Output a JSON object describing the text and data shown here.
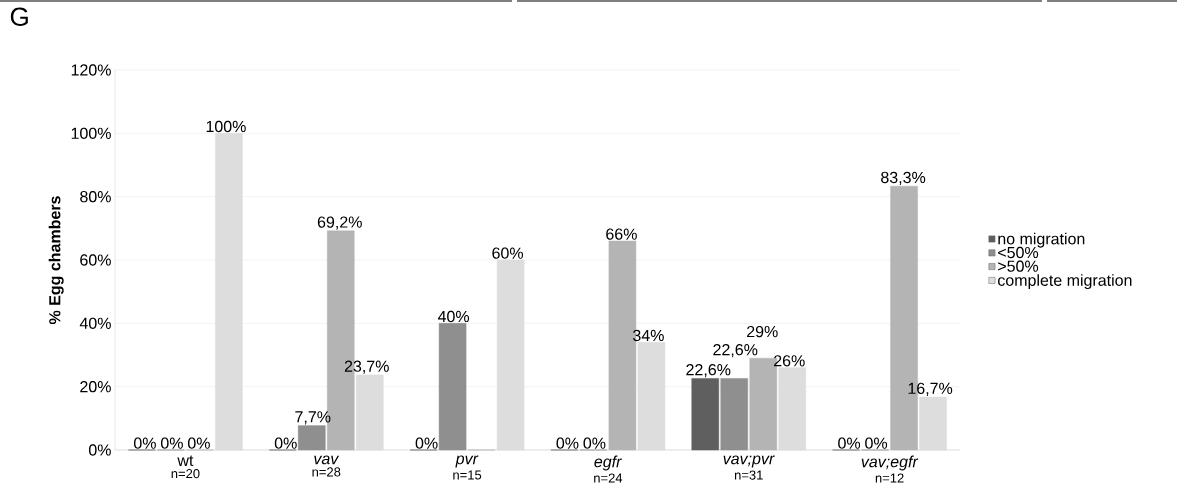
{
  "chart_data": {
    "type": "bar",
    "title": "G",
    "ylabel": "**% Egg chambers**",
    "categories": [
      "wt",
      "*vav*",
      "*pvr*",
      "*egfr*",
      "*vav;pvr*",
      "*vav;egfr*"
    ],
    "annotations": [
      "n=20",
      "n=28",
      "n=15",
      "n=24",
      "n=31",
      "n=12"
    ],
    "series": [
      {
        "name": "no migration",
        "color": "#5f5f5f",
        "values": [
          0,
          0,
          0,
          0,
          22.6,
          0
        ],
        "value_labels": [
          "0%",
          "0%",
          "0%",
          "0%",
          "22,6%",
          "0%"
        ]
      },
      {
        "name": "<50%",
        "color": "#8f8f8f",
        "values": [
          0,
          7.7,
          40,
          0,
          22.6,
          0
        ],
        "value_labels": [
          "0%",
          "7,7%",
          "40%",
          "0%",
          "22,6%",
          "0%"
        ]
      },
      {
        "name": ">50%",
        "color": "#b4b4b4",
        "values": [
          0,
          69.2,
          0,
          66,
          29,
          83.3
        ],
        "value_labels": [
          "0%",
          "69,2%",
          null,
          "66%",
          "29%",
          "83,3%"
        ]
      },
      {
        "name": "complete migration",
        "color": "#dddddd",
        "values": [
          100,
          23.7,
          60,
          34,
          26,
          16.7
        ],
        "value_labels": [
          "100%",
          "23,7%",
          "60%",
          "34%",
          "26%",
          "16,7%"
        ]
      }
    ],
    "ylim": [
      0,
      120
    ],
    "yticks": [
      {
        "value": 0,
        "label": "0%"
      },
      {
        "value": 20,
        "label": "20%"
      },
      {
        "value": 40,
        "label": "40%"
      },
      {
        "value": 60,
        "label": "60%"
      },
      {
        "value": 80,
        "label": "80%"
      },
      {
        "value": 100,
        "label": "100%"
      },
      {
        "value": 120,
        "label": "120%"
      }
    ],
    "grid": "y",
    "legend": "right"
  }
}
